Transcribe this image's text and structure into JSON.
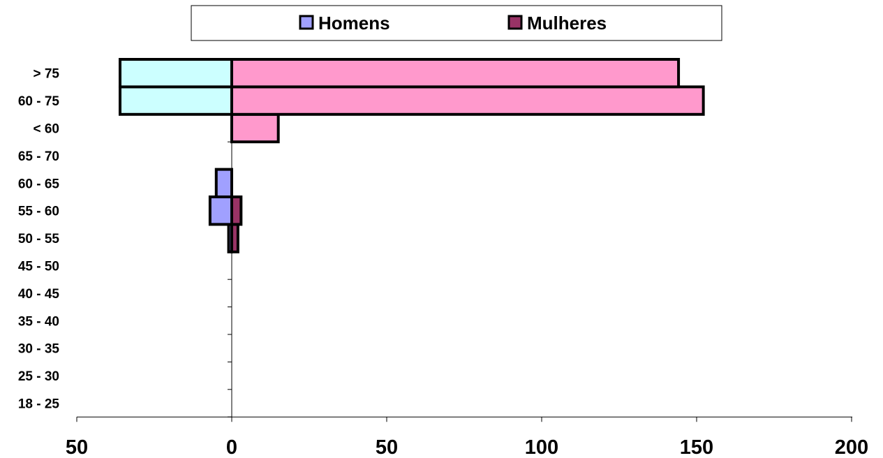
{
  "chart_data": {
    "type": "bar",
    "orientation": "horizontal",
    "categories": [
      "18 - 25",
      "25 - 30",
      "30 - 35",
      "35 - 40",
      "40 - 45",
      "45 - 50",
      "50 - 55",
      "55 - 60",
      "60 - 65",
      "65 - 70",
      "< 60",
      "60 - 75",
      "> 75"
    ],
    "series": [
      {
        "name": "Homens",
        "values": [
          0,
          0,
          0,
          0,
          0,
          0,
          1,
          7,
          5,
          0,
          0,
          36,
          36
        ],
        "color": "#a0a0ff",
        "colors": [
          "#a0a0ff",
          "#a0a0ff",
          "#a0a0ff",
          "#a0a0ff",
          "#a0a0ff",
          "#a0a0ff",
          "#a0a0ff",
          "#a0a0ff",
          "#a0a0ff",
          "#a0a0ff",
          "#ccffff",
          "#ccffff",
          "#ccffff"
        ]
      },
      {
        "name": "Mulheres",
        "values": [
          0,
          0,
          0,
          0,
          0,
          0,
          2,
          3,
          0,
          0,
          15,
          152,
          144
        ],
        "color": "#993366",
        "colors": [
          "#993366",
          "#993366",
          "#993366",
          "#993366",
          "#993366",
          "#993366",
          "#993366",
          "#993366",
          "#993366",
          "#993366",
          "#ff99cc",
          "#ff99cc",
          "#ff99cc"
        ]
      }
    ],
    "x_tick_labels": [
      "50",
      "0",
      "50",
      "100",
      "150",
      "200"
    ],
    "x_ticks": [
      -50,
      0,
      50,
      100,
      150,
      200
    ],
    "xlim": [
      -50,
      200
    ],
    "title": "",
    "xlabel": "",
    "ylabel": "",
    "grid": false,
    "legend_position": "top"
  }
}
